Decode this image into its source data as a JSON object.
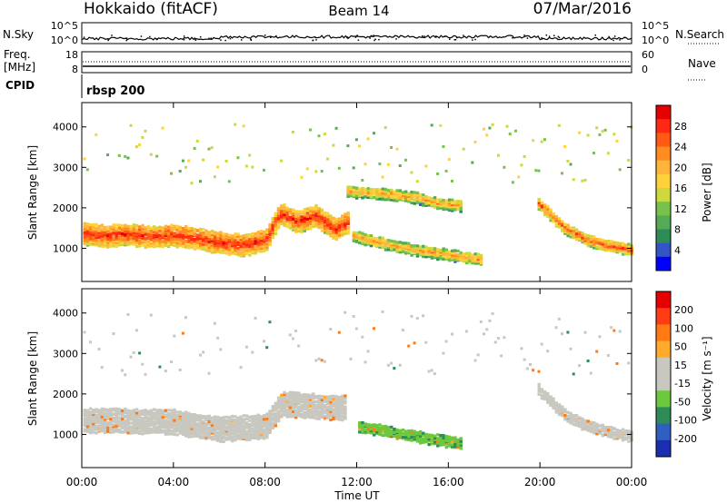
{
  "header": {
    "station": "Hokkaido (fitACF)",
    "beam": "Beam 14",
    "date": "07/Mar/2016"
  },
  "noise_panel": {
    "left_label": "N.Sky",
    "right_label": "N.Search",
    "left_ticks": [
      "10^5",
      "10^0"
    ],
    "right_ticks": [
      "10^5",
      "10^0"
    ]
  },
  "freq_panel": {
    "left_label_1": "Freq.",
    "left_label_2": "[MHz]",
    "right_label": "Nave",
    "left_ticks": [
      "18",
      "8"
    ],
    "right_ticks": [
      "60",
      "0"
    ]
  },
  "cpid": {
    "label": "CPID",
    "value": "rbsp 200"
  },
  "power_panel": {
    "ylabel": "Slant Range [km]",
    "colorbar_label": "Power [dB]",
    "colorbar_ticks": [
      "28",
      "24",
      "20",
      "16",
      "12",
      "8",
      "4"
    ]
  },
  "velocity_panel": {
    "ylabel": "Slant Range [km]",
    "colorbar_label": "Velocity [m s⁻¹]",
    "colorbar_ticks": [
      "200",
      "100",
      "50",
      "15",
      "-15",
      "-50",
      "-100",
      "-200"
    ]
  },
  "xaxis": {
    "label": "Time UT",
    "ticks": [
      "00:00",
      "04:00",
      "08:00",
      "12:00",
      "16:00",
      "20:00",
      "00:00"
    ]
  },
  "colors": {
    "power_scale": [
      "#0000ff",
      "#3355c8",
      "#2e8b57",
      "#55aa55",
      "#77c24a",
      "#cfd83a",
      "#ffd23c",
      "#ffb43c",
      "#ff8c1e",
      "#ff5a14",
      "#ff2814",
      "#e60000"
    ],
    "velocity_scale": [
      "#1a2fb0",
      "#2f5fc0",
      "#2e8b57",
      "#6cc83c",
      "#c8c8c0",
      "#c8c8c0",
      "#ffaa2a",
      "#ff7a14",
      "#ff3c14",
      "#e60000"
    ]
  },
  "chart_data": [
    {
      "type": "heatmap",
      "title": "Power",
      "xlabel": "Time UT",
      "ylabel": "Slant Range [km]",
      "x_range_hours": [
        0,
        24
      ],
      "ylim": [
        180,
        4600
      ],
      "y_ticks": [
        1000,
        2000,
        3000,
        4000
      ],
      "colorbar": {
        "label": "Power [dB]",
        "range": [
          0,
          32
        ],
        "ticks": [
          4,
          8,
          12,
          16,
          20,
          24,
          28
        ]
      },
      "features": [
        {
          "name": "main echo band",
          "t": [
            0,
            1,
            2,
            3,
            4,
            5,
            6,
            7,
            8,
            8.6,
            9.4,
            10.2,
            11,
            11.6
          ],
          "range_km": [
            1400,
            1350,
            1380,
            1330,
            1360,
            1280,
            1180,
            1120,
            1250,
            1900,
            1700,
            1850,
            1500,
            1700
          ],
          "power_dB": 28
        },
        {
          "name": "upper echo band",
          "t": [
            11.5,
            13,
            14.5,
            15.5,
            16.5
          ],
          "range_km": [
            2450,
            2400,
            2300,
            2150,
            2100
          ],
          "power_dB": 22
        },
        {
          "name": "descending band",
          "t": [
            11.8,
            13,
            14.5,
            16,
            17.4
          ],
          "range_km": [
            1350,
            1180,
            1000,
            880,
            760
          ],
          "power_dB": 22
        },
        {
          "name": "evening band",
          "t": [
            19.8,
            21,
            22,
            23,
            24
          ],
          "range_km": [
            2200,
            1550,
            1250,
            1100,
            1000
          ],
          "power_dB": 26
        }
      ]
    },
    {
      "type": "heatmap",
      "title": "Velocity",
      "xlabel": "Time UT",
      "ylabel": "Slant Range [km]",
      "x_range_hours": [
        0,
        24
      ],
      "ylim": [
        180,
        4600
      ],
      "y_ticks": [
        1000,
        2000,
        3000,
        4000
      ],
      "colorbar": {
        "label": "Velocity [m s⁻¹]",
        "range": [
          -250,
          250
        ],
        "ticks": [
          200,
          100,
          50,
          15,
          -15,
          -50,
          -100,
          -200
        ]
      },
      "features": [
        {
          "name": "main echo band",
          "t": [
            0,
            2,
            4,
            6,
            8,
            8.7,
            10,
            11.5
          ],
          "range_km": [
            1400,
            1380,
            1360,
            1180,
            1250,
            1800,
            1750,
            1700
          ],
          "velocity": 0
        },
        {
          "name": "positive band",
          "t": [
            12,
            13.5,
            15,
            16.5
          ],
          "range_km": [
            1250,
            1100,
            950,
            820
          ],
          "velocity": 45
        },
        {
          "name": "evening band",
          "t": [
            19.8,
            21,
            22,
            23,
            24
          ],
          "range_km": [
            2200,
            1550,
            1250,
            1100,
            1000
          ],
          "velocity": 0
        }
      ]
    }
  ]
}
